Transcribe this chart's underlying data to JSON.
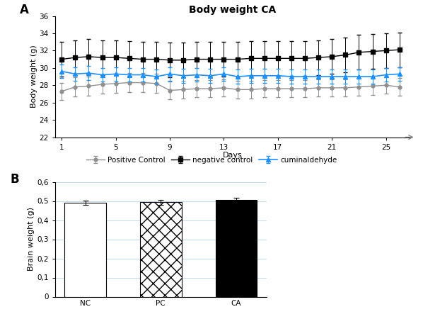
{
  "title_A": "Body weight CA",
  "xlabel_A": "Days",
  "ylabel_A": "Body weight (g)",
  "ylabel_B": "Brain weight (g)",
  "days": [
    1,
    2,
    3,
    4,
    5,
    6,
    7,
    8,
    9,
    10,
    11,
    12,
    13,
    14,
    15,
    16,
    17,
    18,
    19,
    20,
    21,
    22,
    23,
    24,
    25,
    26
  ],
  "pc_mean": [
    27.3,
    27.8,
    27.9,
    28.1,
    28.2,
    28.3,
    28.3,
    28.2,
    27.4,
    27.5,
    27.6,
    27.6,
    27.7,
    27.5,
    27.5,
    27.6,
    27.6,
    27.6,
    27.6,
    27.7,
    27.7,
    27.7,
    27.8,
    27.9,
    28.0,
    27.8
  ],
  "pc_sd": [
    1.0,
    1.1,
    1.1,
    1.1,
    1.1,
    1.1,
    1.1,
    1.1,
    1.0,
    1.0,
    1.0,
    1.0,
    1.0,
    1.0,
    1.0,
    1.0,
    1.0,
    1.0,
    1.0,
    1.0,
    1.0,
    1.0,
    1.0,
    1.0,
    1.0,
    1.0
  ],
  "nc_mean": [
    31.0,
    31.2,
    31.3,
    31.2,
    31.2,
    31.1,
    31.0,
    31.0,
    30.9,
    30.9,
    31.0,
    31.0,
    31.0,
    31.0,
    31.1,
    31.1,
    31.1,
    31.1,
    31.1,
    31.2,
    31.3,
    31.5,
    31.8,
    31.9,
    32.0,
    32.1
  ],
  "nc_sd": [
    2.0,
    2.0,
    2.0,
    2.0,
    2.0,
    2.0,
    2.0,
    2.0,
    2.0,
    2.0,
    2.0,
    2.0,
    2.0,
    2.0,
    2.0,
    2.0,
    2.0,
    2.0,
    2.0,
    2.0,
    2.0,
    2.0,
    2.0,
    2.0,
    2.0,
    2.0
  ],
  "ca_mean": [
    29.6,
    29.3,
    29.4,
    29.2,
    29.3,
    29.2,
    29.2,
    29.0,
    29.3,
    29.1,
    29.2,
    29.1,
    29.3,
    29.0,
    29.1,
    29.1,
    29.1,
    29.0,
    29.0,
    29.0,
    29.0,
    29.0,
    29.0,
    29.0,
    29.2,
    29.3
  ],
  "ca_sd": [
    0.8,
    0.8,
    0.8,
    0.8,
    0.8,
    0.8,
    0.8,
    0.8,
    0.8,
    0.8,
    0.8,
    0.8,
    0.8,
    0.8,
    0.8,
    0.8,
    0.8,
    0.8,
    0.8,
    0.8,
    0.8,
    0.8,
    0.8,
    0.8,
    0.8,
    0.8
  ],
  "pc_color": "#909090",
  "nc_color": "#000000",
  "ca_color": "#1e90ff",
  "ylim_A": [
    22,
    36
  ],
  "yticks_A": [
    22,
    24,
    26,
    28,
    30,
    32,
    34,
    36
  ],
  "xticks_A": [
    1,
    5,
    9,
    13,
    17,
    21,
    25
  ],
  "bar_categories": [
    "NC",
    "PC",
    "CA"
  ],
  "bar_means": [
    0.491,
    0.494,
    0.504
  ],
  "bar_sds": [
    0.012,
    0.013,
    0.014
  ],
  "ylim_B": [
    0,
    0.6
  ],
  "yticks_B": [
    0,
    0.1,
    0.2,
    0.3,
    0.4,
    0.5,
    0.6
  ],
  "bar_colors": [
    "white",
    "white",
    "black"
  ],
  "bar_edge_colors": [
    "black",
    "black",
    "black"
  ]
}
